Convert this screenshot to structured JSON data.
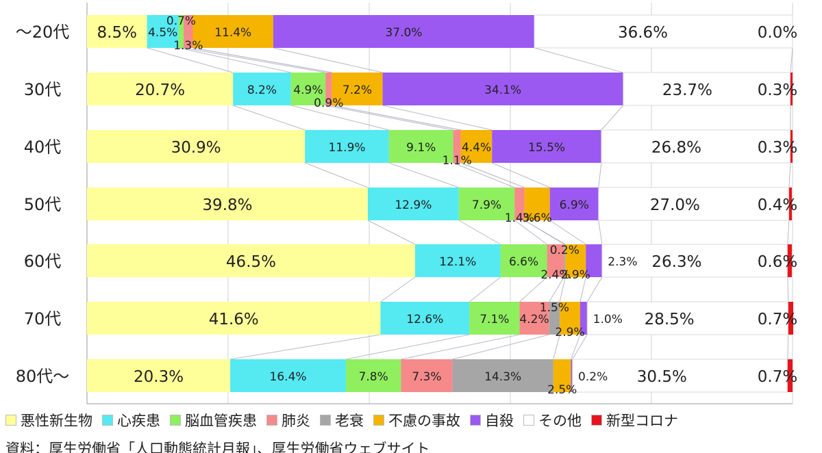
{
  "chart_data": {
    "type": "bar",
    "orientation": "horizontal",
    "stacked": "100%",
    "grid": true,
    "legend_position": "bottom",
    "categories": [
      "～20代",
      "30代",
      "40代",
      "50代",
      "60代",
      "70代",
      "80代～"
    ],
    "series": [
      {
        "name": "悪性新生物",
        "color": "#ffff99",
        "values": [
          8.5,
          20.7,
          30.9,
          39.8,
          46.5,
          41.6,
          20.3
        ]
      },
      {
        "name": "心疾患",
        "color": "#55e9f2",
        "values": [
          4.5,
          8.2,
          11.9,
          12.9,
          12.1,
          12.6,
          16.4
        ]
      },
      {
        "name": "脳血管疾患",
        "color": "#8fef5f",
        "values": [
          0.7,
          4.9,
          9.1,
          7.9,
          6.6,
          7.1,
          7.8
        ]
      },
      {
        "name": "肺炎",
        "color": "#f68a8a",
        "values": [
          1.3,
          0.9,
          1.1,
          1.4,
          2.4,
          4.2,
          7.3
        ]
      },
      {
        "name": "老衰",
        "color": "#a6a6a6",
        "values": [
          0.0,
          0.0,
          0.0,
          0.0,
          0.2,
          1.5,
          14.3
        ]
      },
      {
        "name": "不慮の事故",
        "color": "#f5b400",
        "values": [
          11.4,
          7.2,
          4.4,
          3.6,
          2.9,
          2.9,
          2.5
        ]
      },
      {
        "name": "自殺",
        "color": "#9b59f2",
        "values": [
          37.0,
          34.1,
          15.5,
          6.9,
          2.3,
          1.0,
          0.2
        ]
      },
      {
        "name": "その他",
        "color": "#ffffff",
        "values": [
          36.6,
          23.7,
          26.8,
          27.0,
          26.3,
          28.5,
          30.5
        ]
      },
      {
        "name": "新型コロナ",
        "color": "#e8141b",
        "values": [
          0.0,
          0.3,
          0.3,
          0.4,
          0.6,
          0.7,
          0.7
        ]
      }
    ],
    "labels": [
      [
        "8.5%",
        "4.5%",
        "0.7%",
        "1.3%",
        "",
        "11.4%",
        "37.0%",
        "36.6%",
        "0.0%"
      ],
      [
        "20.7%",
        "8.2%",
        "4.9%",
        "0.9%",
        "",
        "7.2%",
        "34.1%",
        "23.7%",
        "0.3%"
      ],
      [
        "30.9%",
        "11.9%",
        "9.1%",
        "1.1%",
        "",
        "4.4%",
        "15.5%",
        "26.8%",
        "0.3%"
      ],
      [
        "39.8%",
        "12.9%",
        "7.9%",
        "1.4%",
        "",
        "3.6%",
        "6.9%",
        "27.0%",
        "0.4%"
      ],
      [
        "46.5%",
        "12.1%",
        "6.6%",
        "2.4%",
        "0.2%",
        "2.9%",
        "2.3%",
        "26.3%",
        "0.6%"
      ],
      [
        "41.6%",
        "12.6%",
        "7.1%",
        "4.2%",
        "1.5%",
        "2.9%",
        "1.0%",
        "28.5%",
        "0.7%"
      ],
      [
        "20.3%",
        "16.4%",
        "7.8%",
        "7.3%",
        "14.3%",
        "2.5%",
        "0.2%",
        "30.5%",
        "0.7%"
      ]
    ],
    "xlim": [
      0,
      100
    ],
    "title": "",
    "xlabel": "",
    "ylabel": ""
  },
  "legend": {
    "items": [
      {
        "label": "悪性新生物",
        "color": "#ffff99"
      },
      {
        "label": "心疾患",
        "color": "#55e9f2"
      },
      {
        "label": "脳血管疾患",
        "color": "#8fef5f"
      },
      {
        "label": "肺炎",
        "color": "#f68a8a"
      },
      {
        "label": "老衰",
        "color": "#a6a6a6"
      },
      {
        "label": "不慮の事故",
        "color": "#f5b400"
      },
      {
        "label": "自殺",
        "color": "#9b59f2"
      },
      {
        "label": "その他",
        "color": "#ffffff"
      },
      {
        "label": "新型コロナ",
        "color": "#e8141b"
      }
    ]
  },
  "source": "資料：厚生労働省「人口動態統計月報」、厚生労働省ウェブサイト"
}
